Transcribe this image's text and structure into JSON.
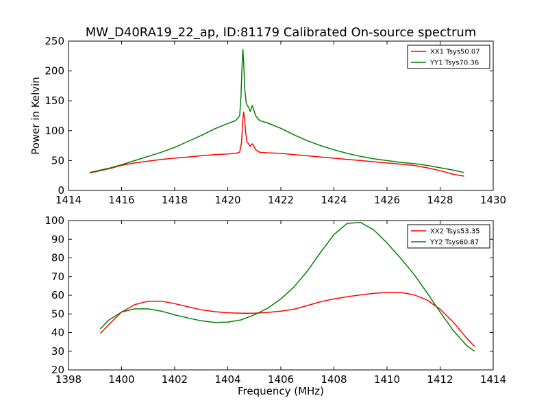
{
  "title": "MW_D40RA19_22_ap, ID:81179 Calibrated On-source spectrum",
  "chart_data": [
    {
      "type": "line",
      "xlabel": "",
      "ylabel": "Power in Kelvin",
      "xlim": [
        1414,
        1430
      ],
      "ylim": [
        0,
        250
      ],
      "xticks": [
        "1414",
        "1416",
        "1418",
        "1420",
        "1422",
        "1424",
        "1426",
        "1428",
        "1430"
      ],
      "yticks": [
        "0",
        "50",
        "100",
        "150",
        "200",
        "250"
      ],
      "legend_position": "top-right",
      "series": [
        {
          "name": "XX1 Tsys50.07",
          "color": "#ff0000",
          "points": [
            [
              1414.8,
              29
            ],
            [
              1415.2,
              33
            ],
            [
              1415.6,
              37
            ],
            [
              1416,
              42
            ],
            [
              1416.5,
              46
            ],
            [
              1417,
              49
            ],
            [
              1417.5,
              52
            ],
            [
              1418,
              54
            ],
            [
              1418.5,
              56
            ],
            [
              1419,
              58
            ],
            [
              1419.5,
              60
            ],
            [
              1420,
              61
            ],
            [
              1420.3,
              62
            ],
            [
              1420.45,
              64
            ],
            [
              1420.52,
              80
            ],
            [
              1420.57,
              120
            ],
            [
              1420.6,
              131
            ],
            [
              1420.63,
              120
            ],
            [
              1420.68,
              95
            ],
            [
              1420.72,
              82
            ],
            [
              1420.8,
              77
            ],
            [
              1420.85,
              74
            ],
            [
              1420.92,
              78
            ],
            [
              1420.96,
              76
            ],
            [
              1421.05,
              68
            ],
            [
              1421.2,
              64
            ],
            [
              1421.5,
              63
            ],
            [
              1422,
              62
            ],
            [
              1422.5,
              60
            ],
            [
              1423,
              58
            ],
            [
              1423.5,
              56
            ],
            [
              1424,
              54
            ],
            [
              1424.5,
              52
            ],
            [
              1425,
              50
            ],
            [
              1425.5,
              48
            ],
            [
              1426,
              46
            ],
            [
              1426.5,
              44
            ],
            [
              1427,
              42
            ],
            [
              1427.5,
              38
            ],
            [
              1428,
              33
            ],
            [
              1428.5,
              27
            ],
            [
              1428.9,
              24
            ]
          ]
        },
        {
          "name": "YY1 Tsys70.36",
          "color": "#008000",
          "points": [
            [
              1414.8,
              30
            ],
            [
              1415.2,
              34
            ],
            [
              1415.6,
              38
            ],
            [
              1416,
              43
            ],
            [
              1416.5,
              50
            ],
            [
              1417,
              57
            ],
            [
              1417.5,
              64
            ],
            [
              1418,
              72
            ],
            [
              1418.5,
              82
            ],
            [
              1419,
              92
            ],
            [
              1419.5,
              103
            ],
            [
              1420,
              112
            ],
            [
              1420.3,
              117
            ],
            [
              1420.45,
              125
            ],
            [
              1420.5,
              160
            ],
            [
              1420.54,
              210
            ],
            [
              1420.57,
              236
            ],
            [
              1420.6,
              215
            ],
            [
              1420.64,
              170
            ],
            [
              1420.7,
              145
            ],
            [
              1420.8,
              138
            ],
            [
              1420.85,
              132
            ],
            [
              1420.92,
              142
            ],
            [
              1420.96,
              138
            ],
            [
              1421.05,
              125
            ],
            [
              1421.2,
              117
            ],
            [
              1421.5,
              113
            ],
            [
              1422,
              104
            ],
            [
              1422.5,
              93
            ],
            [
              1423,
              83
            ],
            [
              1423.5,
              75
            ],
            [
              1424,
              68
            ],
            [
              1424.5,
              62
            ],
            [
              1425,
              57
            ],
            [
              1425.5,
              53
            ],
            [
              1426,
              50
            ],
            [
              1426.5,
              47
            ],
            [
              1427,
              45
            ],
            [
              1427.5,
              42
            ],
            [
              1428,
              38
            ],
            [
              1428.5,
              34
            ],
            [
              1428.9,
              30
            ]
          ]
        }
      ]
    },
    {
      "type": "line",
      "xlabel": "Frequency (MHz)",
      "ylabel": "",
      "xlim": [
        1398,
        1414
      ],
      "ylim": [
        20,
        100
      ],
      "xticks": [
        "1398",
        "1400",
        "1402",
        "1404",
        "1406",
        "1408",
        "1410",
        "1412",
        "1414"
      ],
      "yticks": [
        "20",
        "30",
        "40",
        "50",
        "60",
        "70",
        "80",
        "90",
        "100"
      ],
      "legend_position": "top-right",
      "series": [
        {
          "name": "XX2 Tsys53.35",
          "color": "#ff0000",
          "points": [
            [
              1399.2,
              39.5
            ],
            [
              1399.5,
              44
            ],
            [
              1400,
              51
            ],
            [
              1400.5,
              55
            ],
            [
              1401,
              56.8
            ],
            [
              1401.5,
              56.8
            ],
            [
              1402,
              55.5
            ],
            [
              1402.5,
              53.8
            ],
            [
              1403,
              52.2
            ],
            [
              1403.5,
              51.2
            ],
            [
              1404,
              50.6
            ],
            [
              1404.5,
              50.4
            ],
            [
              1405,
              50.4
            ],
            [
              1405.5,
              50.8
            ],
            [
              1406,
              51.5
            ],
            [
              1406.5,
              52.5
            ],
            [
              1407,
              54.5
            ],
            [
              1407.5,
              56.5
            ],
            [
              1408,
              58
            ],
            [
              1408.5,
              59.2
            ],
            [
              1409,
              60.2
            ],
            [
              1409.5,
              61
            ],
            [
              1410,
              61.5
            ],
            [
              1410.5,
              61.5
            ],
            [
              1411,
              60.3
            ],
            [
              1411.5,
              57.5
            ],
            [
              1412,
              52.5
            ],
            [
              1412.5,
              45.5
            ],
            [
              1413,
              37
            ],
            [
              1413.3,
              32.5
            ]
          ]
        },
        {
          "name": "YY2 Tsys60.87",
          "color": "#008000",
          "points": [
            [
              1399.2,
              42
            ],
            [
              1399.5,
              46.5
            ],
            [
              1400,
              51
            ],
            [
              1400.5,
              52.7
            ],
            [
              1401,
              52.7
            ],
            [
              1401.5,
              51.5
            ],
            [
              1402,
              49.5
            ],
            [
              1402.5,
              47.8
            ],
            [
              1403,
              46.3
            ],
            [
              1403.5,
              45.4
            ],
            [
              1404,
              45.6
            ],
            [
              1404.5,
              46.8
            ],
            [
              1405,
              49.5
            ],
            [
              1405.5,
              53
            ],
            [
              1406,
              58
            ],
            [
              1406.5,
              64.5
            ],
            [
              1407,
              73
            ],
            [
              1407.5,
              83
            ],
            [
              1408,
              92.5
            ],
            [
              1408.5,
              98.5
            ],
            [
              1409,
              99
            ],
            [
              1409.5,
              95
            ],
            [
              1410,
              88
            ],
            [
              1410.5,
              80
            ],
            [
              1411,
              71.5
            ],
            [
              1411.5,
              61.5
            ],
            [
              1412,
              51
            ],
            [
              1412.5,
              41
            ],
            [
              1413,
              33
            ],
            [
              1413.3,
              30
            ]
          ]
        }
      ]
    }
  ]
}
